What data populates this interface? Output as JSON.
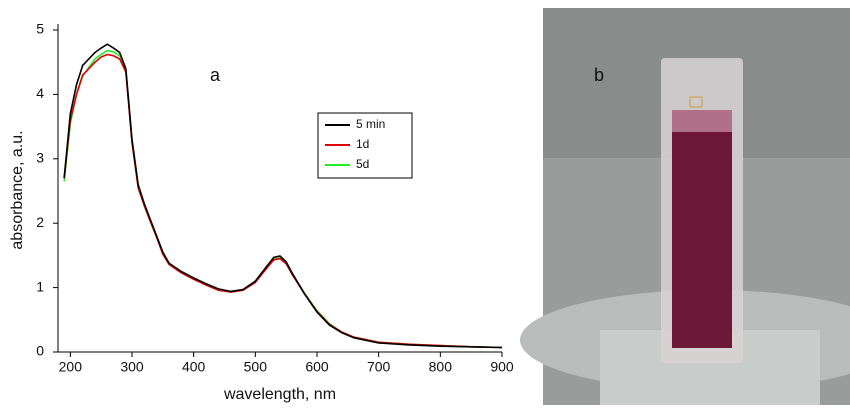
{
  "chart_data": {
    "type": "line",
    "annotations": [
      "a"
    ],
    "x_label": "wavelength, nm",
    "y_label": "absorbance, a.u.",
    "x": [
      190,
      200,
      210,
      220,
      230,
      240,
      250,
      260,
      270,
      280,
      290,
      300,
      310,
      320,
      330,
      340,
      350,
      360,
      380,
      400,
      420,
      440,
      460,
      480,
      500,
      520,
      530,
      540,
      550,
      560,
      580,
      600,
      620,
      640,
      660,
      700,
      750,
      800,
      850,
      900
    ],
    "series": [
      {
        "name": "5 min",
        "color": "#000000",
        "values": [
          2.7,
          3.7,
          4.15,
          4.45,
          4.55,
          4.65,
          4.72,
          4.78,
          4.72,
          4.65,
          4.4,
          3.3,
          2.6,
          2.3,
          2.05,
          1.8,
          1.55,
          1.38,
          1.25,
          1.15,
          1.06,
          0.98,
          0.94,
          0.97,
          1.1,
          1.35,
          1.47,
          1.49,
          1.4,
          1.22,
          0.9,
          0.62,
          0.42,
          0.3,
          0.22,
          0.14,
          0.11,
          0.09,
          0.08,
          0.07
        ]
      },
      {
        "name": "1d",
        "color": "#e00000",
        "values": [
          2.7,
          3.6,
          4.0,
          4.3,
          4.4,
          4.5,
          4.58,
          4.62,
          4.6,
          4.55,
          4.35,
          3.25,
          2.55,
          2.27,
          2.02,
          1.78,
          1.52,
          1.36,
          1.23,
          1.13,
          1.04,
          0.96,
          0.93,
          0.96,
          1.08,
          1.32,
          1.43,
          1.45,
          1.37,
          1.2,
          0.9,
          0.63,
          0.43,
          0.31,
          0.23,
          0.15,
          0.12,
          0.1,
          0.08,
          0.07
        ]
      },
      {
        "name": "5d",
        "color": "#22ee22",
        "values": [
          2.65,
          3.55,
          4.0,
          4.28,
          4.42,
          4.55,
          4.62,
          4.68,
          4.66,
          4.6,
          4.38,
          3.28,
          2.58,
          2.28,
          2.03,
          1.79,
          1.53,
          1.37,
          1.24,
          1.14,
          1.05,
          0.97,
          0.93,
          0.96,
          1.09,
          1.33,
          1.44,
          1.46,
          1.38,
          1.21,
          0.91,
          0.64,
          0.44,
          0.31,
          0.23,
          0.15,
          0.12,
          0.1,
          0.08,
          0.07
        ]
      }
    ],
    "xlim": [
      180,
      900
    ],
    "xticks": [
      200,
      300,
      400,
      500,
      600,
      700,
      800,
      900
    ],
    "ylim": [
      0,
      5
    ],
    "yticks": [
      0,
      1,
      2,
      3,
      4,
      5
    ]
  },
  "photo": {
    "label": "b"
  }
}
